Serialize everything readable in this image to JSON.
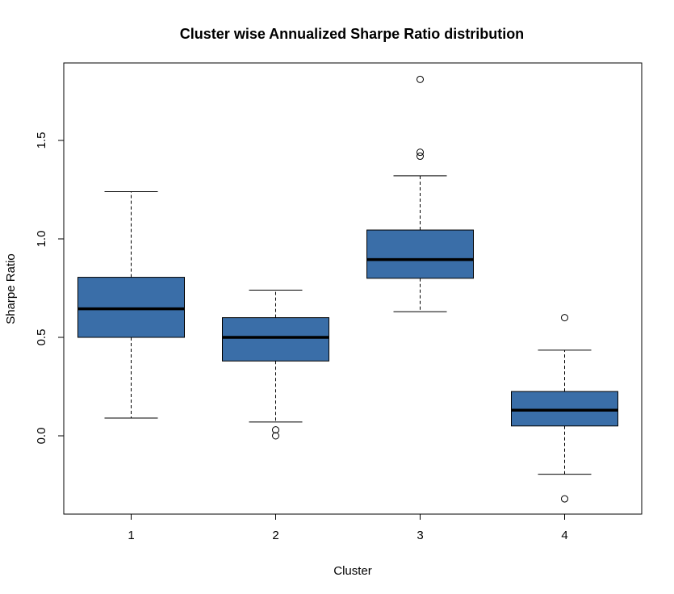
{
  "chart_data": {
    "type": "boxplot",
    "title": "Cluster wise Annualized Sharpe Ratio distribution",
    "xlabel": "Cluster",
    "ylabel": "Sharpe Ratio",
    "categories": [
      "1",
      "2",
      "3",
      "4"
    ],
    "ylim": [
      -0.4,
      1.9
    ],
    "yticks": [
      0.0,
      0.5,
      1.0,
      1.5
    ],
    "ytick_labels": [
      "0.0",
      "0.5",
      "1.0",
      "1.5"
    ],
    "box_color": "#3A6EA8",
    "boxes": [
      {
        "category": "1",
        "whisker_low": 0.09,
        "q1": 0.5,
        "median": 0.645,
        "q3": 0.805,
        "whisker_high": 1.24,
        "outliers": []
      },
      {
        "category": "2",
        "whisker_low": 0.07,
        "q1": 0.38,
        "median": 0.5,
        "q3": 0.6,
        "whisker_high": 0.74,
        "outliers": [
          0.0,
          0.03
        ]
      },
      {
        "category": "3",
        "whisker_low": 0.63,
        "q1": 0.8,
        "median": 0.895,
        "q3": 1.045,
        "whisker_high": 1.32,
        "outliers": [
          1.42,
          1.44,
          1.81
        ]
      },
      {
        "category": "4",
        "whisker_low": -0.195,
        "q1": 0.05,
        "median": 0.13,
        "q3": 0.225,
        "whisker_high": 0.435,
        "outliers": [
          0.6,
          -0.32
        ]
      }
    ],
    "grid": false,
    "legend": "none"
  }
}
